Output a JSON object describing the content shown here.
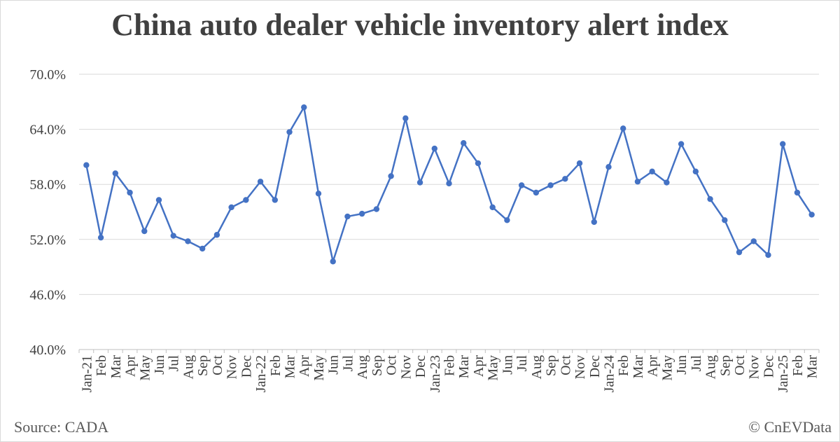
{
  "chart_data": {
    "type": "line",
    "title": "China auto dealer vehicle inventory alert index",
    "xlabel": "",
    "ylabel": "",
    "ylim": [
      40,
      70
    ],
    "yticks": [
      "70.0%",
      "64.0%",
      "58.0%",
      "52.0%",
      "46.0%",
      "40.0%"
    ],
    "ytick_values": [
      70,
      64,
      58,
      52,
      46,
      40
    ],
    "grid": true,
    "legend": "none",
    "categories": [
      "Jan-21",
      "Feb",
      "Mar",
      "Apr",
      "May",
      "Jun",
      "Jul",
      "Aug",
      "Sep",
      "Oct",
      "Nov",
      "Dec",
      "Jan-22",
      "Feb",
      "Mar",
      "Apr",
      "May",
      "Jun",
      "Jul",
      "Aug",
      "Sep",
      "Oct",
      "Nov",
      "Dec",
      "Jan-23",
      "Feb",
      "Mar",
      "Apr",
      "May",
      "Jun",
      "Jul",
      "Aug",
      "Sep",
      "Oct",
      "Nov",
      "Dec",
      "Jan-24",
      "Feb",
      "Mar",
      "Apr",
      "May",
      "Jun",
      "Jul",
      "Aug",
      "Sep",
      "Oct",
      "Nov",
      "Dec",
      "Jan-25",
      "Feb",
      "Mar"
    ],
    "series": [
      {
        "values": [
          60.1,
          52.2,
          59.2,
          57.1,
          52.9,
          56.3,
          52.4,
          51.8,
          51.0,
          52.5,
          55.5,
          56.3,
          58.3,
          56.3,
          63.7,
          66.4,
          57.0,
          49.6,
          54.5,
          54.8,
          55.3,
          58.9,
          65.2,
          58.2,
          61.9,
          58.1,
          62.5,
          60.3,
          55.5,
          54.1,
          57.9,
          57.1,
          57.9,
          58.6,
          60.3,
          53.9,
          59.9,
          64.1,
          58.3,
          59.4,
          58.2,
          62.4,
          59.4,
          56.4,
          54.1,
          50.6,
          51.8,
          50.3,
          62.4,
          57.1,
          54.7
        ],
        "color": "#4472C4"
      }
    ]
  },
  "footer": {
    "source": "Source: CADA",
    "credit": "© CnEVData"
  }
}
